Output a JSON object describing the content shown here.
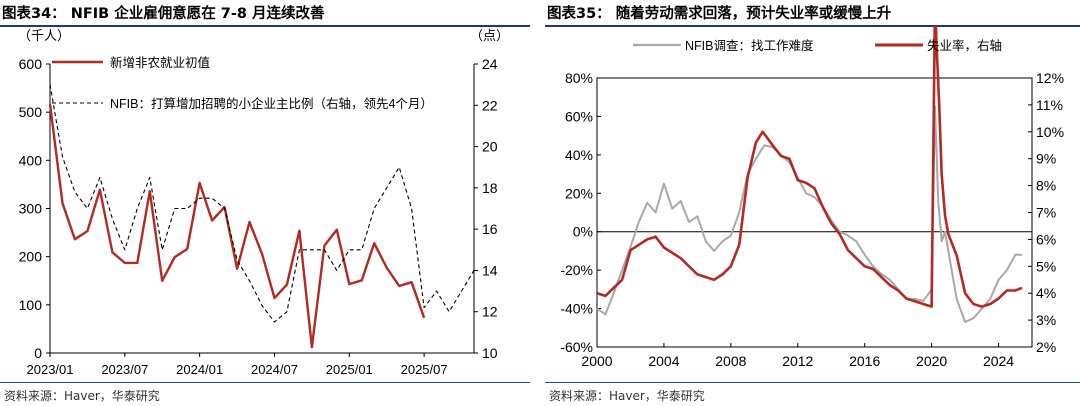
{
  "left": {
    "title": "图表34：  NFIB 企业雇佣意愿在 7-8 月连续改善",
    "source": "资料来源：Haver，华泰研究",
    "chart_data": {
      "type": "line",
      "ylabel_left": "（千人）",
      "ylabel_right": "（点）",
      "ylim_left": [
        0,
        600
      ],
      "ylim_right": [
        10,
        24
      ],
      "yticks_left": [
        0,
        100,
        200,
        300,
        400,
        500,
        600
      ],
      "yticks_right": [
        10,
        12,
        14,
        16,
        18,
        20,
        22,
        24
      ],
      "xtick_labels": [
        "2023/01",
        "2023/07",
        "2024/01",
        "2024/07",
        "2025/01",
        "2025/07"
      ],
      "xtick_index": [
        0,
        6,
        12,
        18,
        24,
        30
      ],
      "series": [
        {
          "name": "新增非农就业初值",
          "axis": "left",
          "color": "#b22a22",
          "x": [
            0,
            1,
            2,
            3,
            4,
            5,
            6,
            7,
            8,
            9,
            10,
            11,
            12,
            13,
            14,
            15,
            16,
            17,
            18,
            19,
            20,
            21,
            22,
            23,
            24,
            25,
            26,
            27,
            28,
            29,
            30
          ],
          "values": [
            517,
            311,
            236,
            253,
            339,
            209,
            187,
            187,
            336,
            150,
            199,
            216,
            353,
            275,
            303,
            175,
            272,
            206,
            114,
            142,
            254,
            12,
            223,
            256,
            143,
            151,
            228,
            177,
            139,
            147,
            73
          ]
        },
        {
          "name": "NFIB：打算增加招聘的小企业主比例（右轴，领先4个月）",
          "axis": "right",
          "color": "#000000",
          "dash": "4,3",
          "x": [
            0,
            1,
            2,
            3,
            4,
            5,
            6,
            7,
            8,
            9,
            10,
            11,
            12,
            13,
            14,
            15,
            16,
            17,
            18,
            19,
            20,
            21,
            22,
            23,
            24,
            25,
            26,
            27,
            28,
            29,
            30,
            31,
            32,
            33,
            34
          ],
          "values": [
            23,
            19.5,
            17.8,
            17,
            18.5,
            16.5,
            15,
            17,
            18.5,
            15,
            17,
            17,
            17.5,
            17.5,
            17,
            14.5,
            13.5,
            12.3,
            11.5,
            12,
            15,
            15,
            15,
            14,
            15,
            15,
            17,
            18,
            19,
            17,
            12.2,
            13,
            12,
            13,
            14
          ]
        }
      ]
    }
  },
  "right": {
    "title": "图表35：  随着劳动需求回落，预计失业率或缓慢上升",
    "source": "资料来源：Haver，华泰研究",
    "chart_data": {
      "type": "line",
      "ylim_left": [
        -60,
        80
      ],
      "ylim_right": [
        2,
        12
      ],
      "yticks_left": [
        "80%",
        "60%",
        "40%",
        "20%",
        "0%",
        "-20%",
        "-40%",
        "-60%"
      ],
      "yticks_right": [
        "12%",
        "11%",
        "10%",
        "9%",
        "8%",
        "7%",
        "6%",
        "5%",
        "4%",
        "3%",
        "2%"
      ],
      "xlim": [
        2000,
        2026
      ],
      "xticks": [
        "2000",
        "2004",
        "2008",
        "2012",
        "2016",
        "2020",
        "2024"
      ],
      "series": [
        {
          "name": "NFIB调查：找工作难度",
          "axis": "left",
          "color": "#a8a8a8",
          "x": [
            2000,
            2000.5,
            2001,
            2001.5,
            2002,
            2002.5,
            2003,
            2003.5,
            2004,
            2004.5,
            2005,
            2005.5,
            2006,
            2006.5,
            2007,
            2007.5,
            2008,
            2008.5,
            2009,
            2009.5,
            2010,
            2010.5,
            2011,
            2011.5,
            2012,
            2012.5,
            2013,
            2013.5,
            2014,
            2014.5,
            2015,
            2015.5,
            2016,
            2016.5,
            2017,
            2017.5,
            2018,
            2018.5,
            2019,
            2019.5,
            2020,
            2020.2,
            2020.4,
            2020.6,
            2020.8,
            2021,
            2021.5,
            2022,
            2022.5,
            2023,
            2023.5,
            2024,
            2024.5,
            2025,
            2025.4
          ],
          "values": [
            -40,
            -43,
            -32,
            -20,
            -8,
            5,
            15,
            10,
            25,
            12,
            16,
            5,
            8,
            -5,
            -10,
            -5,
            -2,
            10,
            30,
            38,
            45,
            44,
            40,
            36,
            28,
            20,
            18,
            13,
            6,
            0,
            -2,
            -5,
            -12,
            -18,
            -22,
            -25,
            -30,
            -35,
            -35,
            -36,
            -30,
            65,
            15,
            -5,
            0,
            -10,
            -35,
            -47,
            -45,
            -40,
            -35,
            -25,
            -20,
            -12,
            -12
          ]
        },
        {
          "name": "失业率，右轴",
          "axis": "right",
          "color": "#b22a22",
          "x": [
            2000,
            2000.5,
            2001,
            2001.5,
            2002,
            2002.5,
            2003,
            2003.5,
            2004,
            2004.5,
            2005,
            2005.5,
            2006,
            2006.5,
            2007,
            2007.5,
            2008,
            2008.5,
            2009,
            2009.5,
            2009.9,
            2010.5,
            2011,
            2011.5,
            2012,
            2012.5,
            2013,
            2013.5,
            2014,
            2014.5,
            2015,
            2015.5,
            2016,
            2016.5,
            2017,
            2017.5,
            2018,
            2018.5,
            2019,
            2019.5,
            2020,
            2020.2,
            2020.3,
            2020.45,
            2020.6,
            2020.8,
            2021,
            2021.5,
            2022,
            2022.5,
            2023,
            2023.5,
            2024,
            2024.5,
            2025,
            2025.4
          ],
          "values": [
            4.0,
            3.9,
            4.2,
            4.5,
            5.6,
            5.8,
            6.0,
            6.1,
            5.7,
            5.5,
            5.3,
            5.0,
            4.7,
            4.6,
            4.5,
            4.7,
            5.0,
            5.8,
            8.3,
            9.6,
            10.0,
            9.5,
            9.1,
            9.0,
            8.2,
            8.1,
            7.9,
            7.2,
            6.6,
            6.2,
            5.6,
            5.3,
            5.0,
            4.9,
            4.6,
            4.3,
            4.1,
            3.8,
            3.7,
            3.6,
            3.5,
            14.8,
            13.2,
            11.1,
            8.4,
            6.9,
            6.2,
            5.4,
            4.0,
            3.6,
            3.5,
            3.6,
            3.8,
            4.1,
            4.1,
            4.2
          ]
        }
      ]
    }
  }
}
